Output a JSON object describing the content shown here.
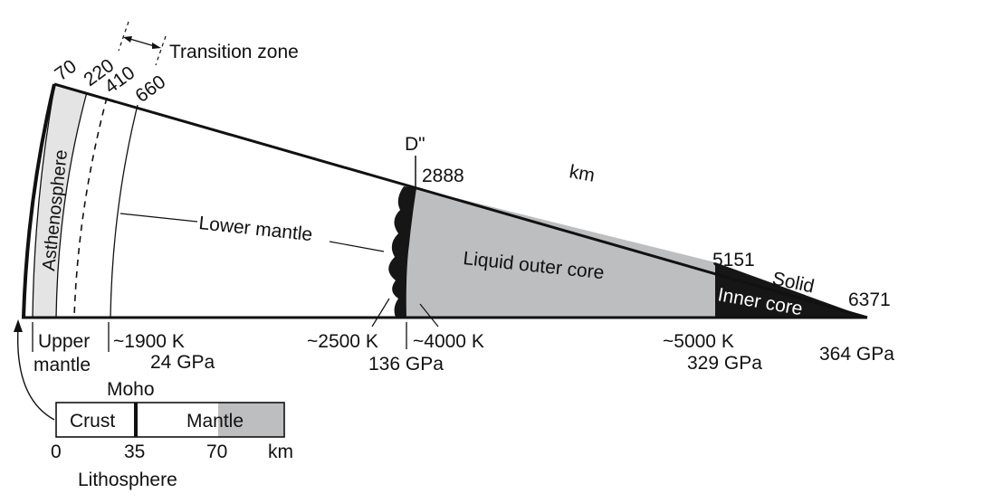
{
  "colors": {
    "line": "#111111",
    "light_gray": "#e4e4e4",
    "mid_gray": "#bdbec0",
    "core_black": "#161616",
    "background": "#ffffff"
  },
  "labels": {
    "transition_zone": "Transition zone",
    "depth_70": "70",
    "depth_220": "220",
    "depth_410": "410",
    "depth_660": "660",
    "asthenosphere": "Asthenosphere",
    "d_double_prime": "D\"",
    "depth_2888": "2888",
    "km_unit": "km",
    "lower_mantle": "Lower mantle",
    "liquid_outer_core": "Liquid outer core",
    "depth_5151": "5151",
    "solid": "Solid",
    "inner_core": "Inner core",
    "depth_6371": "6371",
    "upper_mantle_1": "Upper",
    "upper_mantle_2": "mantle",
    "temp_660": "~1900 K",
    "pressure_660": "24 GPa",
    "temp_d_top": "~2500 K",
    "pressure_cmb": "136 GPa",
    "temp_d_bottom": "~4000 K",
    "temp_icb": "~5000 K",
    "pressure_icb": "329 GPa",
    "pressure_center": "364 GPa"
  },
  "lithosphere_inset": {
    "moho": "Moho",
    "crust": "Crust",
    "mantle": "Mantle",
    "tick_0": "0",
    "tick_35": "35",
    "tick_70": "70",
    "unit": "km",
    "title": "Lithosphere"
  }
}
